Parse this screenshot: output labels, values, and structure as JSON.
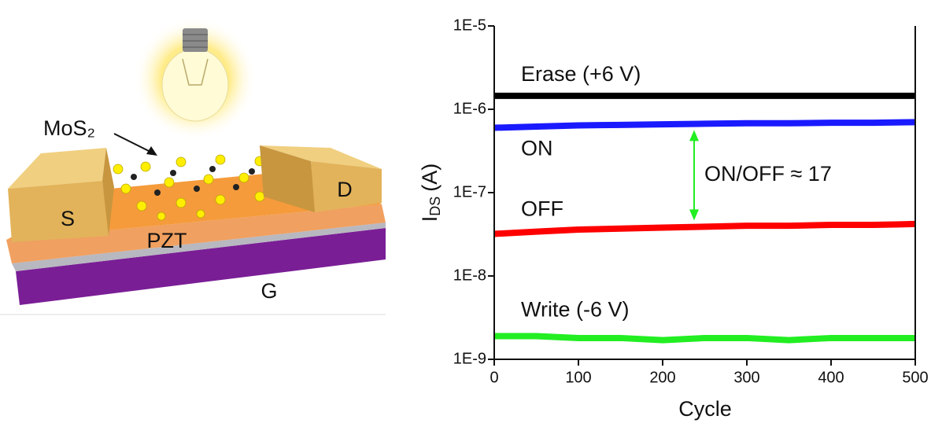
{
  "illustration": {
    "material_label": "MoS₂",
    "source_label": "S",
    "drain_label": "D",
    "ferroelectric_label": "PZT",
    "gate_label": "G"
  },
  "chart_data": {
    "type": "line",
    "x_label": "Cycle",
    "y_label": {
      "main": "I",
      "sub": "DS",
      "unit": "(A)"
    },
    "x": [
      0,
      50,
      100,
      150,
      200,
      250,
      300,
      350,
      400,
      450,
      500
    ],
    "series": [
      {
        "name": "Erase (+6 V)",
        "color": "#000000",
        "values": [
          1.45e-06,
          1.45e-06,
          1.45e-06,
          1.45e-06,
          1.45e-06,
          1.45e-06,
          1.45e-06,
          1.45e-06,
          1.45e-06,
          1.45e-06,
          1.45e-06
        ]
      },
      {
        "name": "ON",
        "color": "#1a1aff",
        "values": [
          6e-07,
          6.2e-07,
          6.4e-07,
          6.5e-07,
          6.6e-07,
          6.7e-07,
          6.8e-07,
          6.8e-07,
          6.9e-07,
          6.9e-07,
          7e-07
        ]
      },
      {
        "name": "OFF",
        "color": "#ff0000",
        "values": [
          3.2e-08,
          3.4e-08,
          3.6e-08,
          3.7e-08,
          3.8e-08,
          3.9e-08,
          4e-08,
          4e-08,
          4.1e-08,
          4.1e-08,
          4.2e-08
        ]
      },
      {
        "name": "Write (-6 V)",
        "color": "#22ee22",
        "values": [
          1.9e-09,
          1.9e-09,
          1.8e-09,
          1.8e-09,
          1.7e-09,
          1.8e-09,
          1.8e-09,
          1.7e-09,
          1.8e-09,
          1.8e-09,
          1.8e-09
        ]
      }
    ],
    "annotation": "ON/OFF ≈ 17",
    "xlim": [
      0,
      500
    ],
    "xticks": [
      0,
      100,
      200,
      300,
      400,
      500
    ],
    "ylim": [
      1e-09,
      1e-05
    ],
    "log_y": true,
    "yticks": [
      {
        "value": 1e-09,
        "label": "1E-9"
      },
      {
        "value": 1e-08,
        "label": "1E-8"
      },
      {
        "value": 1e-07,
        "label": "1E-7"
      },
      {
        "value": 1e-06,
        "label": "1E-6"
      },
      {
        "value": 1e-05,
        "label": "1E-5"
      }
    ]
  }
}
